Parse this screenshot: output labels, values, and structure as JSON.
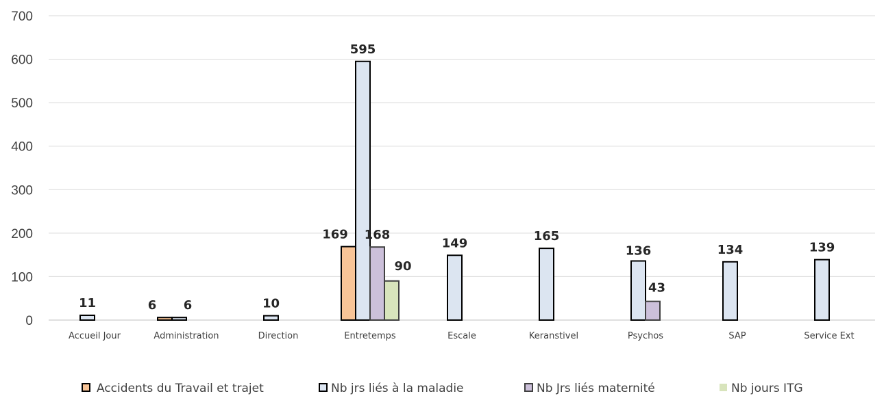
{
  "chart_data": {
    "type": "bar",
    "categories": [
      "Accueil Jour",
      "Administration",
      "Direction",
      "Entretemps",
      "Escale",
      "Keranstivel",
      "Psychos",
      "SAP",
      "Service Ext"
    ],
    "series": [
      {
        "name": "Accidents du Travail et trajet",
        "color": "#F8C497",
        "stroke": "#000000",
        "values": [
          null,
          6,
          null,
          169,
          null,
          null,
          null,
          null,
          null
        ]
      },
      {
        "name": "Nb jrs liés à la maladie",
        "color": "#DCE5F1",
        "stroke": "#000000",
        "values": [
          11,
          6,
          10,
          595,
          149,
          165,
          136,
          134,
          139
        ]
      },
      {
        "name": "Nb Jrs liés maternité",
        "color": "#CCC0DA",
        "stroke": "#404040",
        "values": [
          null,
          null,
          null,
          168,
          null,
          null,
          43,
          null,
          null
        ]
      },
      {
        "name": "Nb jours ITG",
        "color": "#D8E4BC",
        "stroke": "#404040",
        "values": [
          null,
          null,
          null,
          90,
          null,
          null,
          null,
          null,
          null
        ]
      }
    ],
    "ylim": [
      0,
      700
    ],
    "yticks": [
      0,
      100,
      200,
      300,
      400,
      500,
      600,
      700
    ],
    "grid": true,
    "legend_position": "bottom",
    "xlabel": "",
    "ylabel": "",
    "title": ""
  }
}
